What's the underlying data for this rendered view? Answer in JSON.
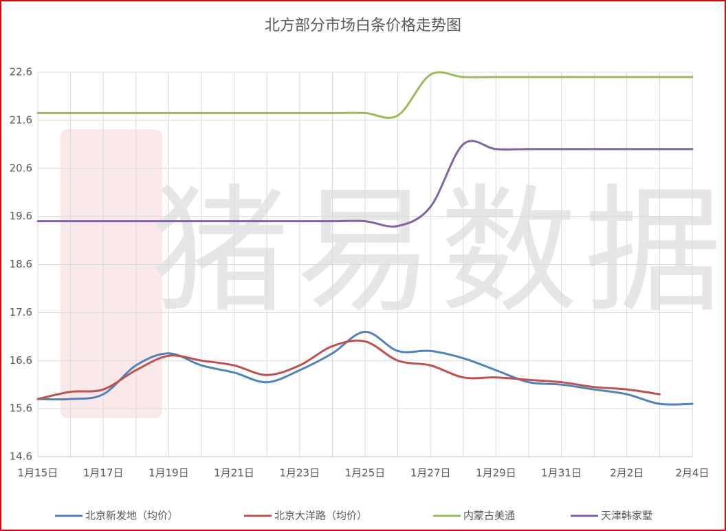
{
  "chart_data": {
    "type": "line",
    "title": "北方部分市场白条价格走势图",
    "watermark": "猪易数据",
    "categories": [
      "1月15日",
      null,
      "1月17日",
      null,
      "1月19日",
      null,
      "1月21日",
      null,
      "1月23日",
      null,
      "1月25日",
      null,
      "1月27日",
      null,
      "1月29日",
      null,
      "1月31日",
      null,
      "2月2日",
      null,
      "2月4日"
    ],
    "series": [
      {
        "name": "北京新发地（均价）",
        "color": "#4f81bd",
        "values": [
          15.8,
          15.8,
          15.9,
          16.5,
          16.75,
          16.5,
          16.35,
          16.15,
          16.4,
          16.75,
          17.2,
          16.8,
          16.8,
          16.65,
          16.4,
          16.15,
          16.1,
          16.0,
          15.9,
          15.7,
          15.7
        ]
      },
      {
        "name": "北京大洋路（均价）",
        "color": "#c0504d",
        "values": [
          15.8,
          15.95,
          16.0,
          16.4,
          16.7,
          16.6,
          16.5,
          16.3,
          16.5,
          16.9,
          17.0,
          16.6,
          16.5,
          16.25,
          16.25,
          16.2,
          16.15,
          16.05,
          16.0,
          15.9,
          null
        ]
      },
      {
        "name": "内蒙古美通",
        "color": "#9bbb59",
        "values": [
          21.75,
          21.75,
          21.75,
          21.75,
          21.75,
          21.75,
          21.75,
          21.75,
          21.75,
          21.75,
          21.75,
          21.7,
          22.55,
          22.5,
          22.5,
          22.5,
          22.5,
          22.5,
          22.5,
          22.5,
          22.5
        ]
      },
      {
        "name": "天津韩家墅",
        "color": "#8064a2",
        "values": [
          19.5,
          19.5,
          19.5,
          19.5,
          19.5,
          19.5,
          19.5,
          19.5,
          19.5,
          19.5,
          19.5,
          19.4,
          19.8,
          21.1,
          21.0,
          21.0,
          21.0,
          21.0,
          21.0,
          21.0,
          21.0
        ]
      }
    ],
    "ylim": [
      14.6,
      22.6
    ],
    "yticks": [
      14.6,
      15.6,
      16.6,
      17.6,
      18.6,
      19.6,
      20.6,
      21.6,
      22.6
    ],
    "grid": true,
    "legend": "bottom"
  }
}
